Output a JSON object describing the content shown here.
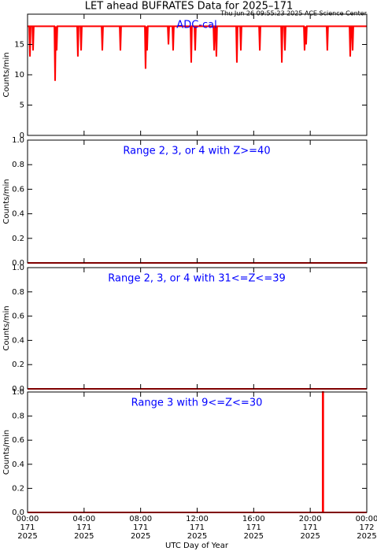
{
  "title": "LET ahead BUFRATES Data for 2025–171",
  "timestamp": "Thu Jun 26 09:55:23 2025 ACE Science Center",
  "x_label": "UTC Day of Year",
  "chart_data": [
    {
      "type": "line",
      "title": "ADC-cal",
      "title_color": "#0000ff",
      "y_label": "Counts/min",
      "color": "#ff0000",
      "xlim": [
        0,
        24
      ],
      "xticks": [
        0,
        4,
        8,
        12,
        16,
        20,
        24
      ],
      "ylim": [
        0,
        20
      ],
      "yticks": [
        0,
        5,
        10,
        15
      ],
      "x": [
        0,
        0.12,
        0.17,
        0.22,
        0.34,
        0.39,
        0.44,
        1.9,
        1.95,
        2.0,
        2.06,
        2.11,
        3.51,
        3.56,
        3.61,
        3.74,
        3.79,
        3.84,
        5.24,
        5.29,
        5.34,
        6.52,
        6.57,
        6.62,
        8.3,
        8.35,
        8.4,
        8.46,
        8.51,
        9.92,
        9.97,
        10.02,
        10.25,
        10.3,
        10.35,
        11.53,
        11.58,
        11.63,
        11.81,
        11.86,
        11.91,
        13.15,
        13.2,
        13.25,
        13.31,
        13.36,
        13.41,
        14.76,
        14.81,
        14.86,
        15.04,
        15.09,
        15.14,
        16.38,
        16.43,
        16.48,
        17.94,
        17.99,
        18.04,
        18.16,
        18.21,
        18.26,
        19.55,
        19.6,
        19.65,
        19.71,
        19.76,
        21.16,
        21.21,
        21.26,
        22.78,
        22.83,
        22.88,
        22.95,
        23.0,
        23.05,
        24
      ],
      "values": [
        18,
        18,
        13,
        18,
        18,
        14,
        18,
        18,
        9,
        18,
        14,
        18,
        18,
        13,
        18,
        18,
        14,
        18,
        18,
        14,
        18,
        18,
        14,
        18,
        18,
        11,
        18,
        14,
        18,
        18,
        15,
        18,
        18,
        14,
        18,
        18,
        12,
        18,
        18,
        14,
        18,
        18,
        14,
        18,
        18,
        13,
        18,
        18,
        12,
        18,
        18,
        14,
        18,
        18,
        14,
        18,
        18,
        12,
        18,
        18,
        14,
        18,
        18,
        14,
        18,
        15,
        18,
        18,
        14,
        18,
        18,
        13,
        18,
        18,
        14,
        18,
        18
      ]
    },
    {
      "type": "line",
      "title": "Range 2, 3, or 4 with Z>=40",
      "title_color": "#0000ff",
      "y_label": "Counts/min",
      "color": "#ff0000",
      "xlim": [
        0,
        24
      ],
      "xticks": [
        0,
        4,
        8,
        12,
        16,
        20,
        24
      ],
      "ylim": [
        0,
        1
      ],
      "yticks": [
        {
          "value": 0,
          "label": "0.0"
        },
        {
          "value": 0.2,
          "label": "0.2"
        },
        {
          "value": 0.4,
          "label": "0.4"
        },
        {
          "value": 0.6,
          "label": "0.6"
        },
        {
          "value": 0.8,
          "label": "0.8"
        },
        {
          "value": 1,
          "label": "1.0"
        }
      ],
      "x": [
        0,
        24
      ],
      "values": [
        0,
        0
      ]
    },
    {
      "type": "line",
      "title": "Range 2, 3, or 4 with 31<=Z<=39",
      "title_color": "#0000ff",
      "y_label": "Counts/min",
      "color": "#ff0000",
      "xlim": [
        0,
        24
      ],
      "xticks": [
        0,
        4,
        8,
        12,
        16,
        20,
        24
      ],
      "ylim": [
        0,
        1
      ],
      "yticks": [
        {
          "value": 0,
          "label": "0.0"
        },
        {
          "value": 0.2,
          "label": "0.2"
        },
        {
          "value": 0.4,
          "label": "0.4"
        },
        {
          "value": 0.6,
          "label": "0.6"
        },
        {
          "value": 0.8,
          "label": "0.8"
        },
        {
          "value": 1,
          "label": "1.0"
        }
      ],
      "x": [
        0,
        24
      ],
      "values": [
        0,
        0
      ]
    },
    {
      "type": "line",
      "title": "Range 3 with 9<=Z<=30",
      "title_color": "#0000ff",
      "y_label": "Counts/min",
      "color": "#ff0000",
      "xlim": [
        0,
        24
      ],
      "xticks": [
        {
          "value": 0,
          "label": "00:00",
          "day": "171",
          "year": "2025"
        },
        {
          "value": 4,
          "label": "04:00",
          "day": "171",
          "year": "2025"
        },
        {
          "value": 8,
          "label": "08:00",
          "day": "171",
          "year": "2025"
        },
        {
          "value": 12,
          "label": "12:00",
          "day": "171",
          "year": "2025"
        },
        {
          "value": 16,
          "label": "16:00",
          "day": "171",
          "year": "2025"
        },
        {
          "value": 20,
          "label": "20:00",
          "day": "171",
          "year": "2025"
        },
        {
          "value": 24,
          "label": "00:00",
          "day": "172",
          "year": "2025"
        }
      ],
      "ylim": [
        0,
        1
      ],
      "yticks": [
        {
          "value": 0,
          "label": "0.0"
        },
        {
          "value": 0.2,
          "label": "0.2"
        },
        {
          "value": 0.4,
          "label": "0.4"
        },
        {
          "value": 0.6,
          "label": "0.6"
        },
        {
          "value": 0.8,
          "label": "0.8"
        },
        {
          "value": 1,
          "label": "1.0"
        }
      ],
      "x": [
        0,
        20.88,
        20.88,
        20.92,
        20.92,
        24
      ],
      "values": [
        0,
        0,
        1,
        1,
        0,
        0
      ]
    }
  ]
}
